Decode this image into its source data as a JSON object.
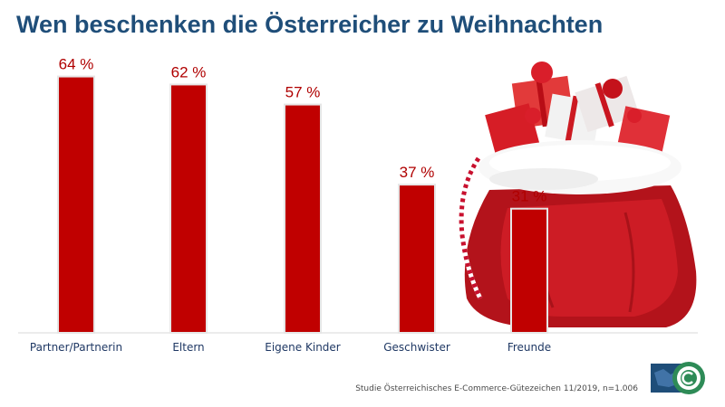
{
  "title": "Wen beschenken die Österreicher zu Weihnachten",
  "source": "Studie Österreichisches E-Commerce-Gütezeichen 11/2019, n=1.006",
  "colors": {
    "bar": "#c00000",
    "title": "#1f4e79",
    "label": "#b00000",
    "axis": "#d9d9d9"
  },
  "chart_data": {
    "type": "bar",
    "title": "Wen beschenken die Österreicher zu Weihnachten",
    "categories": [
      "Partner/Partnerin",
      "Eltern",
      "Eigene Kinder",
      "Geschwister",
      "Freunde"
    ],
    "values": [
      64,
      62,
      57,
      37,
      31
    ],
    "data_labels": [
      "64 %",
      "62 %",
      "57 %",
      "37 %",
      "31 %"
    ],
    "ylim": [
      0,
      70
    ],
    "grid": false,
    "legend": "none"
  },
  "decorations": {
    "illustration": "santa-gift-sack",
    "logo": "e-commerce-guetezeichen-seal"
  }
}
